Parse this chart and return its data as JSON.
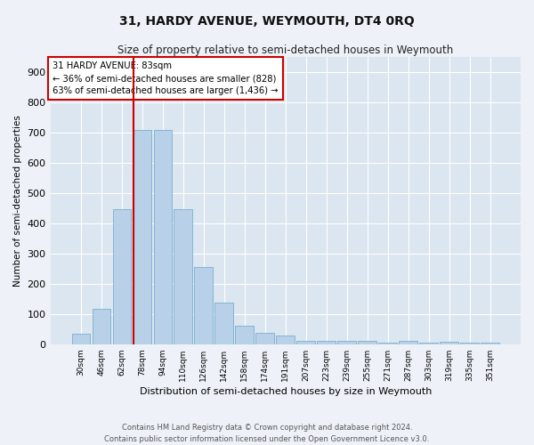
{
  "title": "31, HARDY AVENUE, WEYMOUTH, DT4 0RQ",
  "subtitle": "Size of property relative to semi-detached houses in Weymouth",
  "xlabel": "Distribution of semi-detached houses by size in Weymouth",
  "ylabel": "Number of semi-detached properties",
  "bar_labels": [
    "30sqm",
    "46sqm",
    "62sqm",
    "78sqm",
    "94sqm",
    "110sqm",
    "126sqm",
    "142sqm",
    "158sqm",
    "174sqm",
    "191sqm",
    "207sqm",
    "223sqm",
    "239sqm",
    "255sqm",
    "271sqm",
    "287sqm",
    "303sqm",
    "319sqm",
    "335sqm",
    "351sqm"
  ],
  "bar_values": [
    35,
    118,
    447,
    710,
    710,
    447,
    255,
    137,
    60,
    38,
    30,
    12,
    10,
    10,
    10,
    5,
    10,
    5,
    8,
    5,
    5
  ],
  "bar_color": "#b8d0e8",
  "bar_edgecolor": "#7aafcf",
  "vline_color": "#cc0000",
  "annotation_title": "31 HARDY AVENUE: 83sqm",
  "annotation_line1": "← 36% of semi-detached houses are smaller (828)",
  "annotation_line2": "63% of semi-detached houses are larger (1,436) →",
  "annotation_box_color": "#cc0000",
  "ylim": [
    0,
    950
  ],
  "yticks": [
    0,
    100,
    200,
    300,
    400,
    500,
    600,
    700,
    800,
    900
  ],
  "footer_line1": "Contains HM Land Registry data © Crown copyright and database right 2024.",
  "footer_line2": "Contains public sector information licensed under the Open Government Licence v3.0.",
  "bg_color": "#eef2f8",
  "plot_bg_color": "#dce6f0",
  "grid_color": "#ffffff"
}
